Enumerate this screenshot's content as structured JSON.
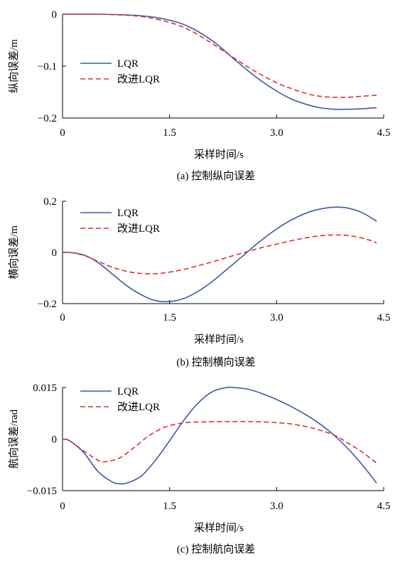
{
  "chart_data": [
    {
      "type": "line",
      "caption": "(a)   控制纵向误差",
      "xlabel": "采样时间/s",
      "ylabel": "纵向误差/m",
      "xlim": [
        0,
        4.5
      ],
      "ylim": [
        -0.2,
        0
      ],
      "xticks": [
        0,
        1.5,
        3.0,
        4.5
      ],
      "xtick_labels": [
        "0",
        "1.5",
        "3.0",
        "4.5"
      ],
      "yticks": [
        0,
        -0.1,
        -0.2
      ],
      "ytick_labels": [
        "0",
        "−0.1",
        "−0.2"
      ],
      "legend": "upper-left",
      "series": [
        {
          "name": "LQR",
          "color": "#3a5aa8",
          "dash": "solid",
          "x": [
            0,
            0.5,
            1.0,
            1.3,
            1.6,
            1.8,
            2.0,
            2.2,
            2.4,
            2.6,
            2.8,
            3.0,
            3.2,
            3.4,
            3.6,
            3.8,
            4.0,
            4.2,
            4.4
          ],
          "y": [
            0,
            0,
            -0.002,
            -0.006,
            -0.015,
            -0.026,
            -0.042,
            -0.062,
            -0.086,
            -0.109,
            -0.13,
            -0.148,
            -0.163,
            -0.173,
            -0.18,
            -0.183,
            -0.183,
            -0.182,
            -0.18
          ]
        },
        {
          "name": "改进LQR",
          "color": "#e03030",
          "dash": "dashed",
          "x": [
            0,
            0.5,
            1.0,
            1.3,
            1.6,
            1.8,
            2.0,
            2.2,
            2.4,
            2.6,
            2.8,
            3.0,
            3.2,
            3.4,
            3.6,
            3.8,
            4.0,
            4.2,
            4.4
          ],
          "y": [
            0,
            0,
            -0.003,
            -0.009,
            -0.02,
            -0.032,
            -0.048,
            -0.066,
            -0.084,
            -0.102,
            -0.118,
            -0.132,
            -0.143,
            -0.152,
            -0.158,
            -0.16,
            -0.16,
            -0.158,
            -0.156
          ]
        }
      ]
    },
    {
      "type": "line",
      "caption": "(b)   控制横向误差",
      "xlabel": "采样时间/s",
      "ylabel": "横向误差/m",
      "xlim": [
        0,
        4.5
      ],
      "ylim": [
        -0.2,
        0.2
      ],
      "xticks": [
        0,
        1.5,
        3.0,
        4.5
      ],
      "xtick_labels": [
        "0",
        "1.5",
        "3.0",
        "4.5"
      ],
      "yticks": [
        0.2,
        0,
        -0.2
      ],
      "ytick_labels": [
        "0.2",
        "0",
        "−0.2"
      ],
      "legend": "upper-left",
      "series": [
        {
          "name": "LQR",
          "color": "#3a5aa8",
          "dash": "solid",
          "x": [
            0,
            0.1,
            0.3,
            0.5,
            0.7,
            0.9,
            1.1,
            1.3,
            1.5,
            1.7,
            1.9,
            2.1,
            2.3,
            2.5,
            2.7,
            2.9,
            3.1,
            3.3,
            3.5,
            3.7,
            3.85,
            4.0,
            4.2,
            4.4
          ],
          "y": [
            0,
            0,
            -0.01,
            -0.04,
            -0.085,
            -0.13,
            -0.165,
            -0.188,
            -0.192,
            -0.18,
            -0.152,
            -0.113,
            -0.067,
            -0.02,
            0.028,
            0.072,
            0.11,
            0.14,
            0.162,
            0.174,
            0.177,
            0.173,
            0.155,
            0.122
          ]
        },
        {
          "name": "改进LQR",
          "color": "#e03030",
          "dash": "dashed",
          "x": [
            0,
            0.1,
            0.3,
            0.5,
            0.7,
            0.9,
            1.1,
            1.3,
            1.5,
            1.7,
            1.9,
            2.1,
            2.3,
            2.5,
            2.7,
            2.9,
            3.1,
            3.3,
            3.5,
            3.7,
            3.9,
            4.1,
            4.3,
            4.4
          ],
          "y": [
            0,
            0,
            -0.012,
            -0.035,
            -0.058,
            -0.074,
            -0.082,
            -0.083,
            -0.077,
            -0.066,
            -0.052,
            -0.037,
            -0.02,
            -0.004,
            0.012,
            0.026,
            0.039,
            0.051,
            0.061,
            0.067,
            0.068,
            0.062,
            0.048,
            0.037
          ]
        }
      ]
    },
    {
      "type": "line",
      "caption": "(c)   控制航向误差",
      "xlabel": "采样时间/s",
      "ylabel": "航向误差/rad",
      "xlim": [
        0,
        4.5
      ],
      "ylim": [
        -0.015,
        0.015
      ],
      "xticks": [
        0,
        1.5,
        3.0,
        4.5
      ],
      "xtick_labels": [
        "0",
        "1.5",
        "3.0",
        "4.5"
      ],
      "yticks": [
        0.015,
        0,
        -0.015
      ],
      "ytick_labels": [
        "0.015",
        "0",
        "−0.015"
      ],
      "legend": "upper-left",
      "series": [
        {
          "name": "LQR",
          "color": "#3a5aa8",
          "dash": "solid",
          "x": [
            0,
            0.1,
            0.3,
            0.5,
            0.7,
            0.8,
            0.9,
            1.1,
            1.3,
            1.5,
            1.7,
            1.9,
            2.1,
            2.3,
            2.4,
            2.6,
            2.8,
            3.0,
            3.2,
            3.4,
            3.6,
            3.8,
            4.0,
            4.2,
            4.4
          ],
          "y": [
            0,
            -0.0005,
            -0.004,
            -0.0095,
            -0.0125,
            -0.013,
            -0.0128,
            -0.0108,
            -0.0062,
            -0.0005,
            0.0055,
            0.0105,
            0.0138,
            0.015,
            0.015,
            0.0145,
            0.0132,
            0.0115,
            0.0095,
            0.0072,
            0.0045,
            0.0012,
            -0.0028,
            -0.0075,
            -0.0128
          ]
        },
        {
          "name": "改进LQR",
          "color": "#e03030",
          "dash": "dashed",
          "x": [
            0,
            0.1,
            0.3,
            0.5,
            0.6,
            0.8,
            1.0,
            1.2,
            1.4,
            1.6,
            1.8,
            2.0,
            2.3,
            2.6,
            2.9,
            3.2,
            3.5,
            3.8,
            4.0,
            4.2,
            4.4
          ],
          "y": [
            0,
            -0.0005,
            -0.0035,
            -0.0062,
            -0.0066,
            -0.0055,
            -0.0025,
            0.0008,
            0.0032,
            0.0044,
            0.0049,
            0.005,
            0.0051,
            0.0051,
            0.0049,
            0.0044,
            0.0032,
            0.0012,
            -0.0012,
            -0.0038,
            -0.007
          ]
        }
      ]
    }
  ]
}
